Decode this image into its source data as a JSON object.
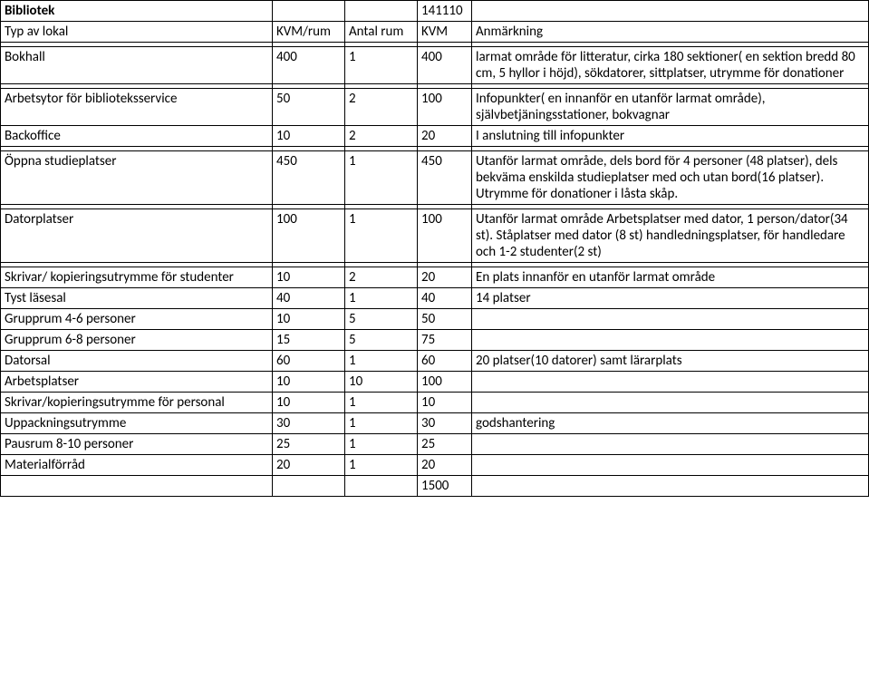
{
  "title_row": {
    "label": "Bibliotek",
    "date": "141110"
  },
  "header_row": {
    "c0": "Typ av lokal",
    "c1": "KVM/rum",
    "c2": "Antal rum",
    "c3": "KVM",
    "c4": "Anmärkning"
  },
  "rows": [
    {
      "c0": "",
      "c1": "",
      "c2": "",
      "c3": "",
      "c4": ""
    },
    {
      "c0": "Bokhall",
      "c1": "400",
      "c2": "1",
      "c3": "400",
      "c4": "larmat område för litteratur,  cirka 180 sektioner( en sektion bredd 80 cm, 5 hyllor i höjd), sökdatorer, sittplatser, utrymme för donationer"
    },
    {
      "c0": "",
      "c1": "",
      "c2": "",
      "c3": "",
      "c4": ""
    },
    {
      "c0": "Arbetsytor för biblioteksservice",
      "c1": "50",
      "c2": "2",
      "c3": "100",
      "c4": "Infopunkter( en innanför en utanför larmat område), självbetjäningsstationer, bokvagnar"
    },
    {
      "c0": "Backoffice",
      "c1": "10",
      "c2": "2",
      "c3": "20",
      "c4": "I anslutning till infopunkter"
    },
    {
      "c0": "",
      "c1": "",
      "c2": "",
      "c3": "",
      "c4": ""
    },
    {
      "c0": "Öppna studieplatser",
      "c1": "450",
      "c2": "1",
      "c3": "450",
      "c4": "Utanför larmat område, dels bord för 4 personer (48 platser), dels bekväma enskilda studieplatser med och utan bord(16 platser). Utrymme för donationer i låsta skåp."
    },
    {
      "c0": "",
      "c1": "",
      "c2": "",
      "c3": "",
      "c4": ""
    },
    {
      "c0": "Datorplatser",
      "c1": "100",
      "c2": "1",
      "c3": "100",
      "c4": " Utanför larmat område Arbetsplatser  med dator, 1 person/dator(34 st). Ståplatser med dator (8 st) handledningsplatser, för handledare och 1-2 studenter(2 st)"
    },
    {
      "c0": "",
      "c1": "",
      "c2": "",
      "c3": "",
      "c4": ""
    },
    {
      "c0": "Skrivar/ kopieringsutrymme för studenter",
      "c1": "10",
      "c2": "2",
      "c3": "20",
      "c4": "En plats innanför en utanför larmat område"
    },
    {
      "c0": "Tyst läsesal",
      "c1": "40",
      "c2": "1",
      "c3": "40",
      "c4": "14 platser"
    },
    {
      "c0": "Grupprum 4-6 personer",
      "c1": "10",
      "c2": "5",
      "c3": "50",
      "c4": ""
    },
    {
      "c0": "Grupprum 6-8 personer",
      "c1": "15",
      "c2": "5",
      "c3": "75",
      "c4": ""
    },
    {
      "c0": "Datorsal",
      "c1": "60",
      "c2": "1",
      "c3": "60",
      "c4": "20 platser(10 datorer) samt lärarplats"
    },
    {
      "c0": "Arbetsplatser",
      "c1": "10",
      "c2": "10",
      "c3": "100",
      "c4": ""
    },
    {
      "c0": "Skrivar/kopieringsutrymme för personal",
      "c1": "10",
      "c2": "1",
      "c3": "10",
      "c4": ""
    },
    {
      "c0": "Uppackningsutrymme",
      "c1": "30",
      "c2": "1",
      "c3": "30",
      "c4": "godshantering"
    },
    {
      "c0": "Pausrum 8-10 personer",
      "c1": "25",
      "c2": "1",
      "c3": "25",
      "c4": ""
    },
    {
      "c0": "Materialförråd",
      "c1": "20",
      "c2": "1",
      "c3": "20",
      "c4": ""
    },
    {
      "c0": "",
      "c1": "",
      "c2": "",
      "c3": "1500",
      "c4": ""
    }
  ]
}
